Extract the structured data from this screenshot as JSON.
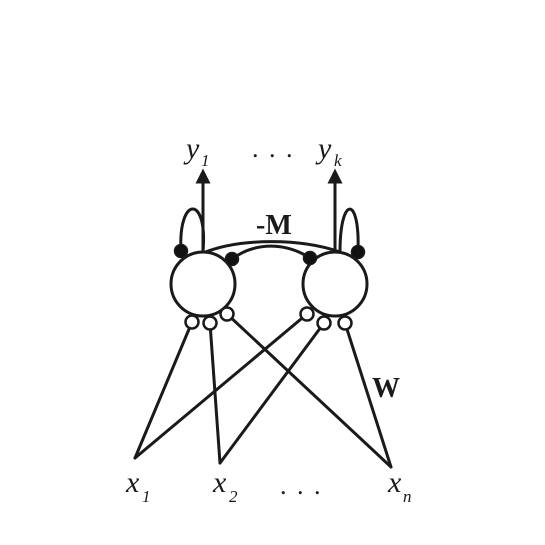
{
  "labels": {
    "y_left": "y",
    "y_left_sub": "1",
    "y_right": "y",
    "y_right_sub": "k",
    "y_ellipsis": ". . .",
    "x1": "x",
    "x1_sub": "1",
    "x2": "x",
    "x2_sub": "2",
    "xn": "x",
    "xn_sub": "n",
    "x_ellipsis": ". . .",
    "lateral_weights": "-M",
    "feedforward_weights": "W"
  },
  "colors": {
    "stroke": "#1a1a1a",
    "background": "#ffffff"
  }
}
